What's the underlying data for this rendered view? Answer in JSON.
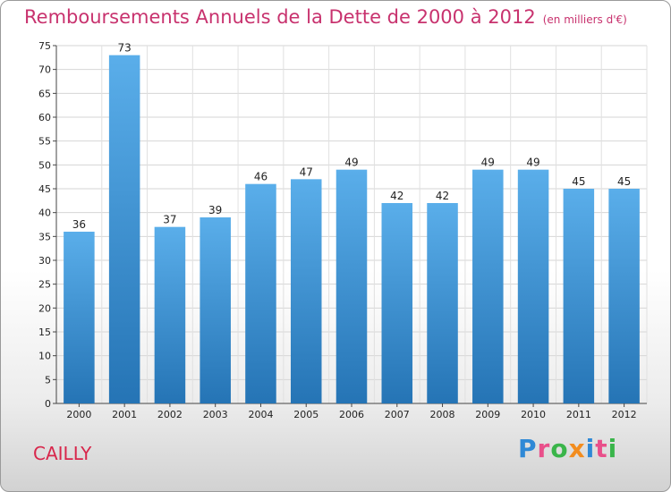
{
  "title": "Remboursements Annuels de la Dette de 2000 à 2012",
  "subtitle": "(en milliers d'€)",
  "town": "CAILLY",
  "logo": {
    "text": "Proxiti",
    "colors": [
      "#2f89d6",
      "#e94f8a",
      "#3ab54a",
      "#f28c1e",
      "#2f89d6",
      "#e94f8a",
      "#3ab54a"
    ]
  },
  "colors": {
    "bar_top": "#5aaeea",
    "bar_bottom": "#2574b5",
    "title": "#c8326e"
  },
  "chart_data": {
    "type": "bar",
    "title": "Remboursements Annuels de la Dette de 2000 à 2012",
    "subtitle": "(en milliers d'€)",
    "categories": [
      "2000",
      "2001",
      "2002",
      "2003",
      "2004",
      "2005",
      "2006",
      "2007",
      "2008",
      "2009",
      "2010",
      "2011",
      "2012"
    ],
    "values": [
      36,
      73,
      37,
      39,
      46,
      47,
      49,
      42,
      42,
      49,
      49,
      45,
      45
    ],
    "yticks": [
      0,
      5,
      10,
      15,
      20,
      25,
      30,
      35,
      40,
      45,
      50,
      55,
      60,
      65,
      70,
      75
    ],
    "ylim": [
      0,
      75
    ],
    "grid": true,
    "legend": "none"
  }
}
